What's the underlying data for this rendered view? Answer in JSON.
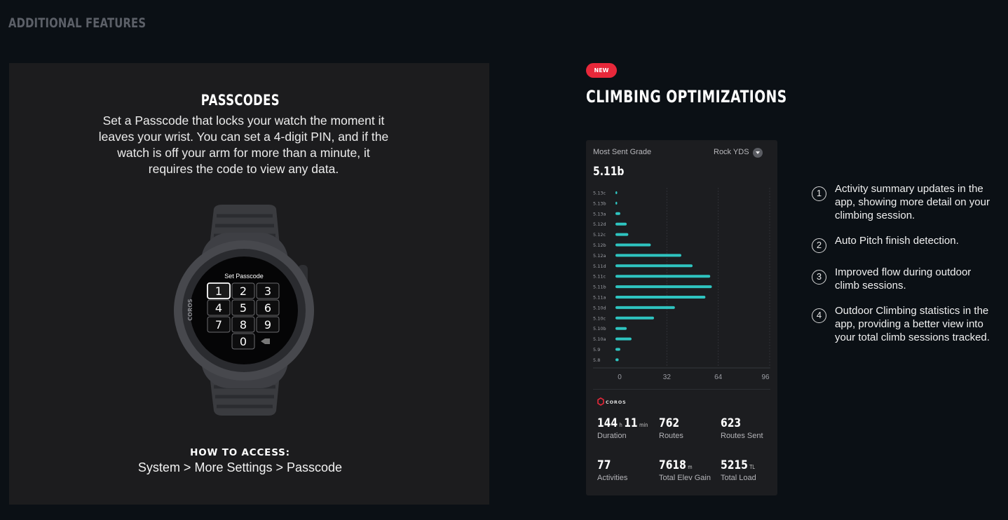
{
  "section": {
    "title": "ADDITIONAL FEATURES"
  },
  "passcodes": {
    "title": "PASSCODES",
    "description": "Set a Passcode that locks your watch the moment it leaves your wrist. You can set a 4-digit PIN, and if the watch is off your arm for more than a minute, it requires the code to view any data.",
    "watch": {
      "brand": "COROS",
      "screen_title": "Set Passcode",
      "keys": [
        "1",
        "2",
        "3",
        "4",
        "5",
        "6",
        "7",
        "8",
        "9",
        "0"
      ],
      "selected_key": "1"
    },
    "how_to_label": "HOW TO ACCESS:",
    "how_to_path": "System > More Settings > Passcode"
  },
  "climbing": {
    "badge": "NEW",
    "title": "CLIMBING OPTIMIZATIONS",
    "app": {
      "most_sent_label": "Most Sent Grade",
      "grade_system": "Rock YDS",
      "most_sent_value": "5.11b",
      "brand": "COROS",
      "stats": [
        {
          "value": "144",
          "unit": "h",
          "value2": "11",
          "unit2": "min",
          "label": "Duration"
        },
        {
          "value": "762",
          "unit": "",
          "label": "Routes"
        },
        {
          "value": "623",
          "unit": "",
          "label": "Routes Sent"
        },
        {
          "value": "77",
          "unit": "",
          "label": "Activities"
        },
        {
          "value": "7618",
          "unit": "m",
          "label": "Total Elev Gain"
        },
        {
          "value": "5215",
          "unit": "TL",
          "label": "Total Load"
        }
      ]
    },
    "features": [
      {
        "num": "1",
        "text": "Activity summary updates in the app, showing more detail on your climbing session."
      },
      {
        "num": "2",
        "text": "Auto Pitch finish detection."
      },
      {
        "num": "3",
        "text": "Improved flow during outdoor climb sessions."
      },
      {
        "num": "4",
        "text": "Outdoor Climbing statistics in the app, providing a better view into your total climb sessions tracked."
      }
    ]
  },
  "chart_data": {
    "type": "bar",
    "orientation": "horizontal",
    "categories": [
      "5.13c",
      "5.13b",
      "5.13a",
      "5.12d",
      "5.12c",
      "5.12b",
      "5.12a",
      "5.11d",
      "5.11c",
      "5.11b",
      "5.11a",
      "5.10d",
      "5.10c",
      "5.10b",
      "5.10a",
      "5.9",
      "5.8"
    ],
    "values": [
      1,
      1,
      3,
      7,
      8,
      22,
      41,
      48,
      59,
      60,
      56,
      37,
      24,
      7,
      10,
      3,
      2
    ],
    "x_ticks": [
      0,
      32,
      64,
      96
    ],
    "xlim": [
      0,
      96
    ],
    "bar_color": "#2ec4c0",
    "grid": true
  }
}
